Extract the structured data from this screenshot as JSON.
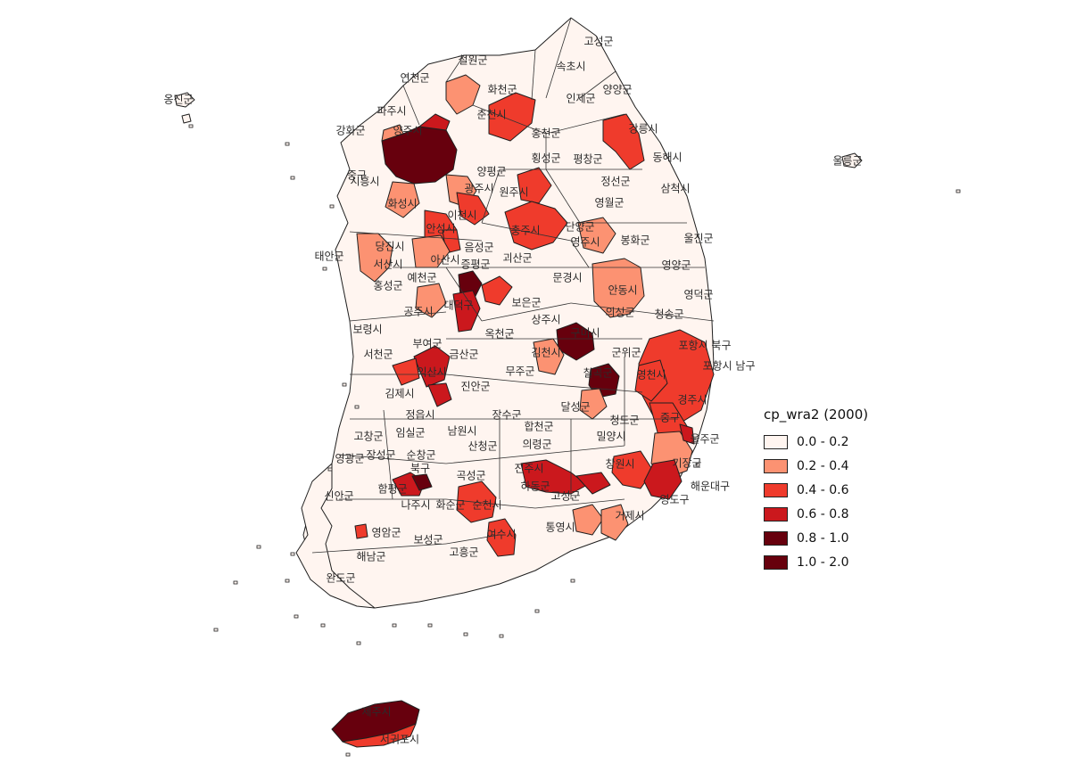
{
  "legend": {
    "title": "cp_wra2 (2000)",
    "classes": [
      {
        "label": "0.0 - 0.2",
        "color": "#fff5f0"
      },
      {
        "label": "0.2 - 0.4",
        "color": "#fc9272"
      },
      {
        "label": "0.4 - 0.6",
        "color": "#ef3b2c"
      },
      {
        "label": "0.6 - 0.8",
        "color": "#cb181d"
      },
      {
        "label": "0.8 - 1.0",
        "color": "#67000d"
      },
      {
        "label": "1.0 - 2.0",
        "color": "#67000d"
      }
    ]
  },
  "regions": [
    {
      "name": "고성군",
      "cls": 0
    },
    {
      "name": "속초시",
      "cls": 0
    },
    {
      "name": "양양군",
      "cls": 0
    },
    {
      "name": "인제군",
      "cls": 0
    },
    {
      "name": "철원군",
      "cls": 0
    },
    {
      "name": "연천군",
      "cls": 0
    },
    {
      "name": "화천군",
      "cls": 1
    },
    {
      "name": "춘천시",
      "cls": 2
    },
    {
      "name": "파주시",
      "cls": 1
    },
    {
      "name": "양주시",
      "cls": 1
    },
    {
      "name": "강화군",
      "cls": 0
    },
    {
      "name": "홍천군",
      "cls": 0
    },
    {
      "name": "강릉시",
      "cls": 2
    },
    {
      "name": "동해시",
      "cls": 0
    },
    {
      "name": "평창군",
      "cls": 0
    },
    {
      "name": "횡성군",
      "cls": 0
    },
    {
      "name": "양평군",
      "cls": 0
    },
    {
      "name": "정선군",
      "cls": 0
    },
    {
      "name": "삼척시",
      "cls": 0
    },
    {
      "name": "원주시",
      "cls": 2
    },
    {
      "name": "광주시",
      "cls": 1
    },
    {
      "name": "이천시",
      "cls": 1
    },
    {
      "name": "화성시",
      "cls": 1
    },
    {
      "name": "시흥시",
      "cls": 4
    },
    {
      "name": "중구",
      "cls": 0
    },
    {
      "name": "영월군",
      "cls": 0
    },
    {
      "name": "단양군",
      "cls": 0
    },
    {
      "name": "충주시",
      "cls": 2
    },
    {
      "name": "안성시",
      "cls": 2
    },
    {
      "name": "음성군",
      "cls": 0
    },
    {
      "name": "울진군",
      "cls": 0
    },
    {
      "name": "봉화군",
      "cls": 0
    },
    {
      "name": "영주시",
      "cls": 1
    },
    {
      "name": "당진시",
      "cls": 1
    },
    {
      "name": "서산시",
      "cls": 1
    },
    {
      "name": "태안군",
      "cls": 0
    },
    {
      "name": "아산시",
      "cls": 1
    },
    {
      "name": "증평군",
      "cls": 0
    },
    {
      "name": "괴산군",
      "cls": 0
    },
    {
      "name": "영양군",
      "cls": 0
    },
    {
      "name": "예천군",
      "cls": 0
    },
    {
      "name": "홍성군",
      "cls": 0
    },
    {
      "name": "문경시",
      "cls": 0
    },
    {
      "name": "안동시",
      "cls": 1
    },
    {
      "name": "영덕군",
      "cls": 0
    },
    {
      "name": "공주시",
      "cls": 1
    },
    {
      "name": "대덕구",
      "cls": 3
    },
    {
      "name": "보은군",
      "cls": 0
    },
    {
      "name": "의성군",
      "cls": 1
    },
    {
      "name": "청송군",
      "cls": 0
    },
    {
      "name": "보령시",
      "cls": 0
    },
    {
      "name": "상주시",
      "cls": 0
    },
    {
      "name": "부여군",
      "cls": 0
    },
    {
      "name": "옥천군",
      "cls": 0
    },
    {
      "name": "구미시",
      "cls": 4
    },
    {
      "name": "포항시 북구",
      "cls": 2
    },
    {
      "name": "서천군",
      "cls": 0
    },
    {
      "name": "금산군",
      "cls": 0
    },
    {
      "name": "김천시",
      "cls": 1
    },
    {
      "name": "군위군",
      "cls": 0
    },
    {
      "name": "포항시 남구",
      "cls": 2
    },
    {
      "name": "익산시",
      "cls": 3
    },
    {
      "name": "무주군",
      "cls": 0
    },
    {
      "name": "칠곡군",
      "cls": 3
    },
    {
      "name": "영천시",
      "cls": 2
    },
    {
      "name": "김제시",
      "cls": 0
    },
    {
      "name": "진안군",
      "cls": 0
    },
    {
      "name": "경주시",
      "cls": 2
    },
    {
      "name": "정읍시",
      "cls": 0
    },
    {
      "name": "장수군",
      "cls": 0
    },
    {
      "name": "달성군",
      "cls": 1
    },
    {
      "name": "청도군",
      "cls": 0
    },
    {
      "name": "고창군",
      "cls": 0
    },
    {
      "name": "임실군",
      "cls": 0
    },
    {
      "name": "남원시",
      "cls": 0
    },
    {
      "name": "합천군",
      "cls": 0
    },
    {
      "name": "중구",
      "cls": 2
    },
    {
      "name": "밀양시",
      "cls": 0
    },
    {
      "name": "울주군",
      "cls": 1
    },
    {
      "name": "영광군",
      "cls": 0
    },
    {
      "name": "장성군",
      "cls": 0
    },
    {
      "name": "순창군",
      "cls": 0
    },
    {
      "name": "산청군",
      "cls": 0
    },
    {
      "name": "의령군",
      "cls": 0
    },
    {
      "name": "창원시",
      "cls": 2
    },
    {
      "name": "기장군",
      "cls": 2
    },
    {
      "name": "북구",
      "cls": 3
    },
    {
      "name": "진주시",
      "cls": 3
    },
    {
      "name": "해운대구",
      "cls": 3
    },
    {
      "name": "함평군",
      "cls": 0
    },
    {
      "name": "곡성군",
      "cls": 0
    },
    {
      "name": "신안군",
      "cls": 0
    },
    {
      "name": "나주시",
      "cls": 0
    },
    {
      "name": "화순군",
      "cls": 0
    },
    {
      "name": "순천시",
      "cls": 2
    },
    {
      "name": "하동군",
      "cls": 0
    },
    {
      "name": "고성군",
      "cls": 0
    },
    {
      "name": "영도구",
      "cls": 2
    },
    {
      "name": "거제시",
      "cls": 1
    },
    {
      "name": "통영시",
      "cls": 1
    },
    {
      "name": "영암군",
      "cls": 0
    },
    {
      "name": "보성군",
      "cls": 0
    },
    {
      "name": "해남군",
      "cls": 0
    },
    {
      "name": "고흥군",
      "cls": 0
    },
    {
      "name": "여수시",
      "cls": 2
    },
    {
      "name": "완도군",
      "cls": 0
    },
    {
      "name": "제주시",
      "cls": 5
    },
    {
      "name": "서귀포시",
      "cls": 2
    },
    {
      "name": "옹진군",
      "cls": 0
    },
    {
      "name": "울릉군",
      "cls": 0
    }
  ]
}
